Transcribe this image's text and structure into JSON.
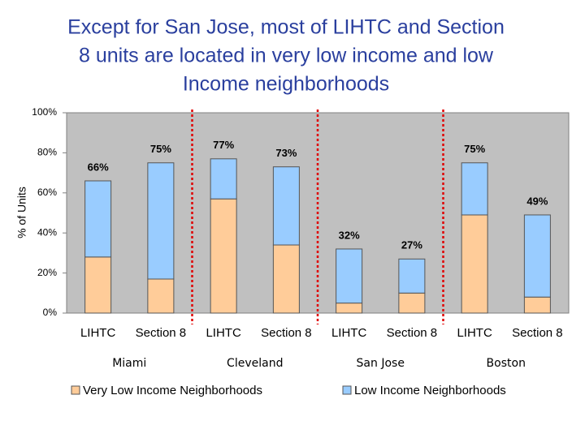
{
  "chart_data": {
    "type": "stacked_bar",
    "title": [
      "Except for San Jose, most of LIHTC and Section",
      "8 units are located in very low income and low",
      "Income neighborhoods"
    ],
    "y_label": "% of Units",
    "categories": [
      "LIHTC",
      "Section 8",
      "LIHTC",
      "Section 8",
      "LIHTC",
      "Section 8",
      "LIHTC",
      "Section 8"
    ],
    "groups": [
      "Miami",
      "Cleveland",
      "San Jose",
      "Boston"
    ],
    "series": [
      {
        "name": "Very Low Income Neighborhoods",
        "color": "#ffcc99",
        "values": [
          28,
          17,
          57,
          34,
          5,
          10,
          49,
          8
        ]
      },
      {
        "name": "Low Income Neighborhoods",
        "color": "#99ccff",
        "values": [
          38,
          58,
          20,
          39,
          27,
          17,
          26,
          41
        ]
      }
    ],
    "totals": {
      "values": [
        66,
        75,
        77,
        73,
        32,
        27,
        75,
        49
      ],
      "value_labels": [
        "66%",
        "75%",
        "77%",
        "73%",
        "32%",
        "27%",
        "75%",
        "49%"
      ]
    },
    "ylim": [
      0,
      100
    ],
    "yticks": [
      {
        "value": 0,
        "label": "0%"
      },
      {
        "value": 20,
        "label": "20%"
      },
      {
        "value": 40,
        "label": "40%"
      },
      {
        "value": 60,
        "label": "60%"
      },
      {
        "value": 80,
        "label": "80%"
      },
      {
        "value": 100,
        "label": "100%"
      }
    ],
    "grid": false
  }
}
